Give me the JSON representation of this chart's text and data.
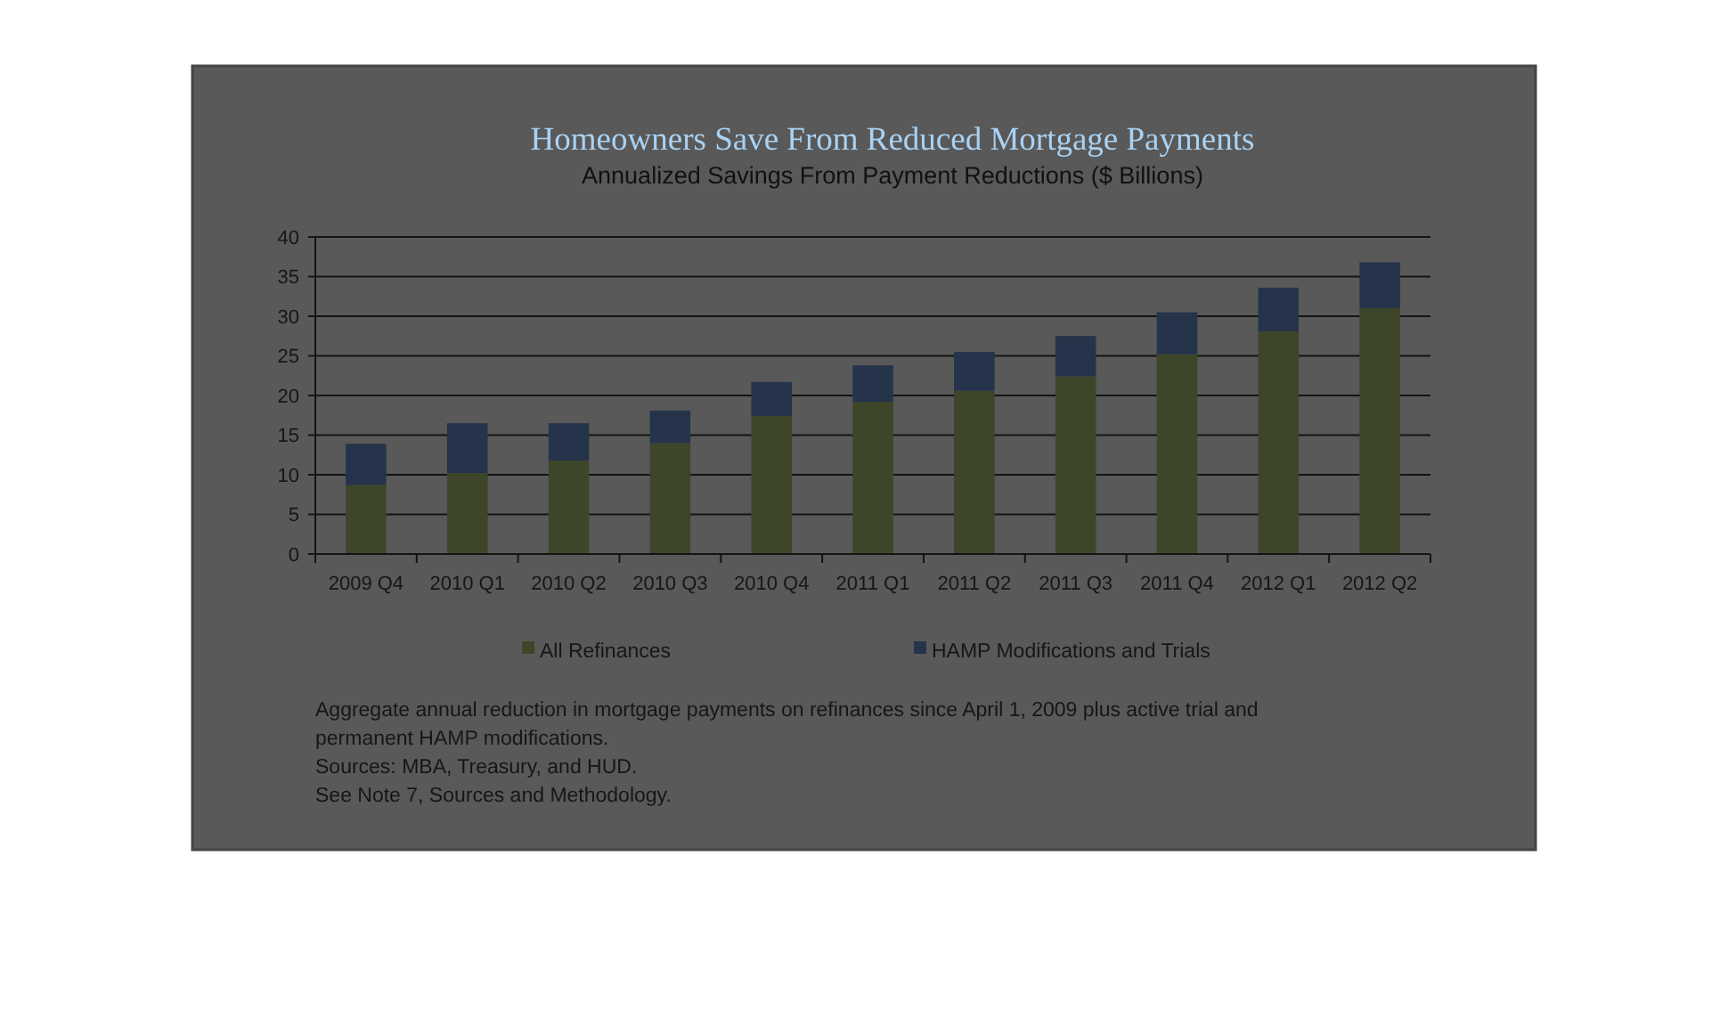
{
  "chart_data": {
    "type": "bar",
    "stacked": true,
    "title": "Homeowners Save From Reduced Mortgage Payments",
    "subtitle": "Annualized Savings From Payment Reductions ($ Billions)",
    "categories": [
      "2009 Q4",
      "2010 Q1",
      "2010 Q2",
      "2010 Q3",
      "2010 Q4",
      "2011 Q1",
      "2011 Q2",
      "2011 Q3",
      "2011 Q4",
      "2012 Q1",
      "2012 Q2"
    ],
    "series": [
      {
        "name": "All Refinances",
        "color": "#3d4628",
        "values": [
          8.7,
          10.2,
          11.8,
          14.0,
          17.4,
          19.2,
          20.6,
          22.4,
          25.2,
          28.1,
          31.0
        ]
      },
      {
        "name": "HAMP Modifications and Trials",
        "color": "#25344a",
        "values": [
          5.2,
          6.3,
          4.7,
          4.1,
          4.3,
          4.6,
          4.9,
          5.1,
          5.3,
          5.5,
          5.8
        ]
      }
    ],
    "ylim": [
      0,
      40
    ],
    "yticks": [
      0,
      5,
      10,
      15,
      20,
      25,
      30,
      35,
      40
    ],
    "grid": "y",
    "legend": "bottom",
    "annotations": [
      "Aggregate annual reduction in mortgage payments on refinances since April 1, 2009 plus active trial and permanent HAMP modifications.",
      "Sources: MBA, Treasury, and HUD.",
      "See Note 7, Sources and Methodology."
    ]
  }
}
